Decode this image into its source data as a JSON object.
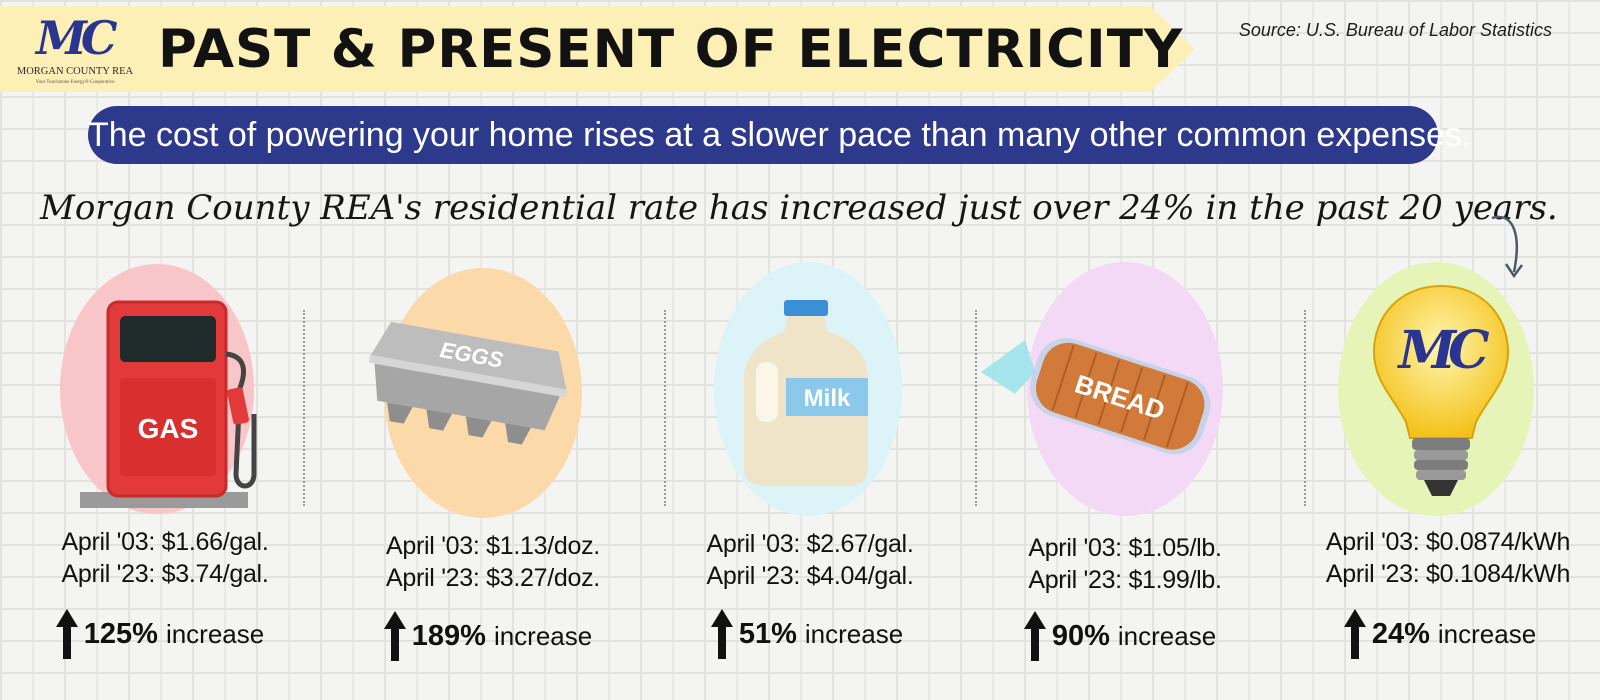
{
  "header": {
    "logo_mark": "MC",
    "logo_name": "MORGAN COUNTY REA",
    "logo_tagline": "Your Touchstone Energy® Cooperative",
    "title": "PAST & PRESENT OF ELECTRICITY",
    "source": "Source: U.S. Bureau of Labor Statistics"
  },
  "subtitle": "The cost of powering your home rises at a slower pace than many other common expenses.",
  "headline": "Morgan County REA's residential rate has increased just over 24% in the past 20 years.",
  "colors": {
    "banner": "#fdf0b7",
    "pill": "#2d3a8c",
    "gas_blob": "#f8c6c9",
    "eggs_blob": "#fbd9a9",
    "milk_blob": "#dcf3f8",
    "bread_blob": "#f3d9f5",
    "bulb_blob": "#e6f5b7"
  },
  "items": [
    {
      "icon": "gas-pump-icon",
      "image_label": "GAS",
      "past": "April '03: $1.66/gal.",
      "present": "April '23: $3.74/gal.",
      "percent": "125%",
      "increase_word": "increase"
    },
    {
      "icon": "egg-carton-icon",
      "image_label": "EGGS",
      "past": "April '03: $1.13/doz.",
      "present": "April '23: $3.27/doz.",
      "percent": "189%",
      "increase_word": "increase"
    },
    {
      "icon": "milk-jug-icon",
      "image_label": "Milk",
      "past": "April '03: $2.67/gal.",
      "present": "April '23: $4.04/gal.",
      "percent": "51%",
      "increase_word": "increase"
    },
    {
      "icon": "bread-loaf-icon",
      "image_label": "BREAD",
      "past": "April '03: $1.05/lb.",
      "present": "April '23: $1.99/lb.",
      "percent": "90%",
      "increase_word": "increase"
    },
    {
      "icon": "light-bulb-icon",
      "image_label": "MC",
      "past": "April '03: $0.0874/kWh",
      "present": "April '23: $0.1084/kWh",
      "percent": "24%",
      "increase_word": "increase"
    }
  ]
}
